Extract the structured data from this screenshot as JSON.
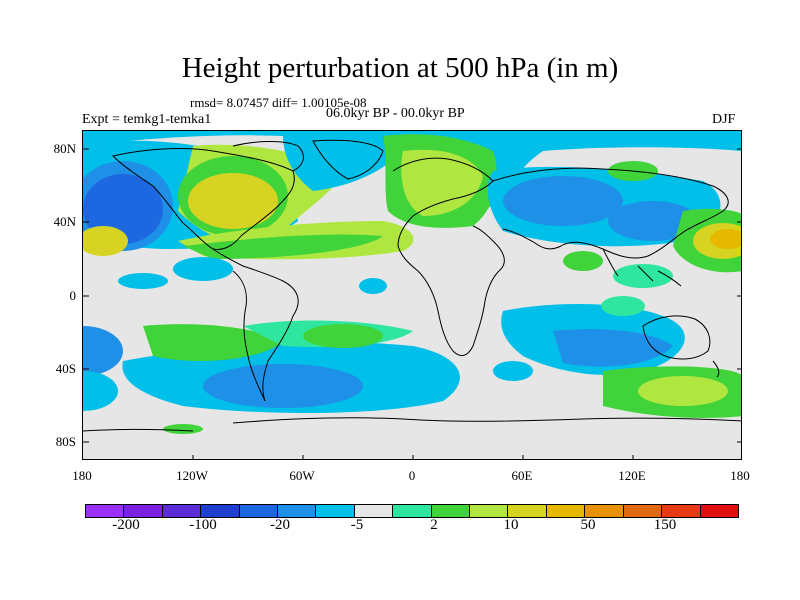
{
  "title": "Height perturbation at 500 hPa (in m)",
  "stats_line": "rmsd= 8.07457  diff= 1.00105e-08",
  "period": "06.0kyr BP - 00.0kyr BP",
  "experiment": "Expt = temkg1-temka1",
  "season": "DJF",
  "map": {
    "lat_labels": [
      "80N",
      "40N",
      "0",
      "40S",
      "80S"
    ],
    "lon_labels": [
      "180",
      "120W",
      "60W",
      "0",
      "60E",
      "120E",
      "180"
    ]
  },
  "colorbar": {
    "colors": [
      "#9b30ff",
      "#7a22e0",
      "#5a2bd6",
      "#1f3fd0",
      "#1d68e0",
      "#1e90e8",
      "#00bfe8",
      "#e6e6e6",
      "#2ee6a0",
      "#41d43a",
      "#b0e640",
      "#d7d322",
      "#e6b800",
      "#e69200",
      "#e06a10",
      "#e63a12",
      "#e01010"
    ],
    "labels": [
      "-200",
      "-100",
      "-20",
      "-5",
      "2",
      "10",
      "50",
      "150"
    ]
  }
}
